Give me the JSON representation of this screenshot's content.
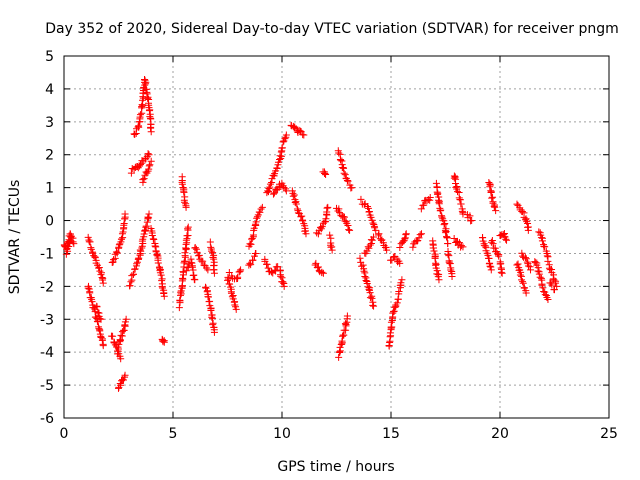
{
  "chart_data": {
    "type": "scatter",
    "title": "Day 352 of 2020, Sidereal Day-to-day VTEC variation (SDTVAR) for receiver pngm",
    "xlabel": "GPS time / hours",
    "ylabel": "SDTVAR / TECUs",
    "xlim": [
      0,
      25
    ],
    "ylim": [
      -6,
      5
    ],
    "xticks": [
      0,
      5,
      10,
      15,
      20,
      25
    ],
    "yticks": [
      -6,
      -5,
      -4,
      -3,
      -2,
      -1,
      0,
      1,
      2,
      3,
      4,
      5
    ],
    "x_tick_labels": [
      "0",
      "5",
      "10",
      "15",
      "20",
      "25"
    ],
    "y_tick_labels": [
      "-6",
      "-5",
      "-4",
      "-3",
      "-2",
      "-1",
      "0",
      "1",
      "2",
      "3",
      "4",
      "5"
    ],
    "grid": true,
    "marker": "+",
    "color": "#ff0000",
    "tracks": [
      [
        [
          0.1,
          -1.0
        ],
        [
          0.2,
          -0.6
        ],
        [
          0.3,
          -0.4
        ],
        [
          0.45,
          -0.7
        ]
      ],
      [
        [
          0.0,
          -0.7
        ],
        [
          0.15,
          -0.9
        ],
        [
          0.3,
          -0.5
        ]
      ],
      [
        [
          1.1,
          -0.5
        ],
        [
          1.3,
          -0.9
        ],
        [
          1.5,
          -1.3
        ],
        [
          1.7,
          -1.6
        ],
        [
          1.8,
          -1.9
        ]
      ],
      [
        [
          1.1,
          -2.0
        ],
        [
          1.3,
          -2.5
        ],
        [
          1.5,
          -3.0
        ],
        [
          1.7,
          -3.5
        ],
        [
          1.8,
          -3.8
        ]
      ],
      [
        [
          1.5,
          -2.6
        ],
        [
          1.7,
          -3.0
        ]
      ],
      [
        [
          2.2,
          -1.3
        ],
        [
          2.5,
          -0.9
        ],
        [
          2.7,
          -0.4
        ],
        [
          2.8,
          0.2
        ]
      ],
      [
        [
          2.2,
          -3.5
        ],
        [
          2.4,
          -3.9
        ],
        [
          2.6,
          -4.2
        ]
      ],
      [
        [
          2.45,
          -4.0
        ],
        [
          2.6,
          -3.6
        ],
        [
          2.75,
          -3.3
        ],
        [
          2.85,
          -3.0
        ]
      ],
      [
        [
          2.5,
          -5.1
        ],
        [
          2.65,
          -4.9
        ],
        [
          2.8,
          -4.7
        ]
      ],
      [
        [
          3.0,
          -2.0
        ],
        [
          3.2,
          -1.6
        ],
        [
          3.4,
          -1.2
        ],
        [
          3.5,
          -1.0
        ]
      ],
      [
        [
          3.1,
          1.5
        ],
        [
          3.3,
          1.6
        ],
        [
          3.5,
          1.7
        ],
        [
          3.7,
          1.9
        ],
        [
          3.9,
          2.0
        ]
      ],
      [
        [
          3.2,
          2.6
        ],
        [
          3.4,
          2.8
        ],
        [
          3.6,
          3.5
        ],
        [
          3.7,
          4.3
        ],
        [
          3.9,
          3.5
        ],
        [
          4.0,
          2.7
        ]
      ],
      [
        [
          3.5,
          -1.0
        ],
        [
          3.7,
          -0.3
        ],
        [
          3.9,
          0.2
        ]
      ],
      [
        [
          3.6,
          1.2
        ],
        [
          3.8,
          1.5
        ],
        [
          4.0,
          1.8
        ]
      ],
      [
        [
          4.0,
          -0.3
        ],
        [
          4.2,
          -0.8
        ],
        [
          4.4,
          -1.5
        ],
        [
          4.6,
          -2.3
        ]
      ],
      [
        [
          4.5,
          -3.6
        ],
        [
          4.6,
          -3.7
        ]
      ],
      [
        [
          5.3,
          -2.6
        ],
        [
          5.4,
          -2.0
        ],
        [
          5.5,
          -1.4
        ],
        [
          5.6,
          -0.8
        ],
        [
          5.7,
          -0.2
        ]
      ],
      [
        [
          5.4,
          1.3
        ],
        [
          5.5,
          0.8
        ],
        [
          5.6,
          0.4
        ]
      ],
      [
        [
          5.6,
          -1.5
        ],
        [
          5.8,
          -1.2
        ],
        [
          6.0,
          -1.8
        ]
      ],
      [
        [
          6.0,
          -0.8
        ],
        [
          6.3,
          -1.2
        ],
        [
          6.6,
          -1.5
        ]
      ],
      [
        [
          6.5,
          -2.0
        ],
        [
          6.7,
          -2.5
        ],
        [
          6.9,
          -3.4
        ]
      ],
      [
        [
          6.7,
          -0.7
        ],
        [
          6.85,
          -1.0
        ],
        [
          6.9,
          -1.6
        ]
      ],
      [
        [
          7.5,
          -1.7
        ],
        [
          7.7,
          -2.2
        ],
        [
          7.9,
          -2.7
        ]
      ],
      [
        [
          7.6,
          -1.6
        ],
        [
          7.9,
          -1.8
        ],
        [
          8.1,
          -1.5
        ]
      ],
      [
        [
          8.5,
          -0.8
        ],
        [
          8.7,
          -0.4
        ],
        [
          8.9,
          0.2
        ],
        [
          9.1,
          0.4
        ]
      ],
      [
        [
          8.5,
          -1.4
        ],
        [
          8.8,
          -1.0
        ]
      ],
      [
        [
          9.3,
          0.8
        ],
        [
          9.5,
          1.2
        ],
        [
          9.7,
          1.5
        ],
        [
          9.9,
          1.8
        ],
        [
          10.0,
          2.2
        ],
        [
          10.2,
          2.6
        ]
      ],
      [
        [
          9.2,
          -1.2
        ],
        [
          9.4,
          -1.5
        ],
        [
          9.6,
          -1.6
        ],
        [
          9.8,
          -1.4
        ]
      ],
      [
        [
          9.6,
          0.8
        ],
        [
          9.8,
          1.0
        ],
        [
          10.0,
          1.1
        ],
        [
          10.2,
          0.9
        ]
      ],
      [
        [
          9.9,
          -1.5
        ],
        [
          10.0,
          -1.8
        ],
        [
          10.1,
          -2.0
        ]
      ],
      [
        [
          10.4,
          2.9
        ],
        [
          10.6,
          2.8
        ],
        [
          10.8,
          2.7
        ],
        [
          11.0,
          2.6
        ]
      ],
      [
        [
          10.5,
          0.9
        ],
        [
          10.6,
          0.6
        ],
        [
          10.8,
          0.2
        ],
        [
          11.0,
          -0.1
        ],
        [
          11.1,
          -0.4
        ]
      ],
      [
        [
          11.6,
          -0.4
        ],
        [
          11.8,
          -0.2
        ],
        [
          12.0,
          0.0
        ],
        [
          12.1,
          0.4
        ]
      ],
      [
        [
          11.5,
          -1.3
        ],
        [
          11.7,
          -1.5
        ],
        [
          11.9,
          -1.6
        ]
      ],
      [
        [
          11.9,
          1.5
        ],
        [
          12.0,
          1.4
        ]
      ],
      [
        [
          12.2,
          -0.5
        ],
        [
          12.3,
          -0.9
        ]
      ],
      [
        [
          12.6,
          2.1
        ],
        [
          12.8,
          1.6
        ],
        [
          13.0,
          1.2
        ],
        [
          13.2,
          1.0
        ]
      ],
      [
        [
          12.5,
          0.4
        ],
        [
          12.7,
          0.2
        ],
        [
          12.9,
          0.0
        ],
        [
          13.1,
          -0.3
        ]
      ],
      [
        [
          12.6,
          -4.1
        ],
        [
          12.7,
          -3.8
        ],
        [
          12.9,
          -3.3
        ],
        [
          13.0,
          -2.9
        ]
      ],
      [
        [
          13.6,
          -1.2
        ],
        [
          13.8,
          -1.6
        ],
        [
          14.0,
          -2.1
        ],
        [
          14.2,
          -2.6
        ]
      ],
      [
        [
          13.6,
          0.6
        ],
        [
          13.9,
          0.4
        ],
        [
          14.1,
          0.1
        ],
        [
          14.3,
          -0.3
        ]
      ],
      [
        [
          13.8,
          -1.0
        ],
        [
          14.0,
          -0.8
        ],
        [
          14.2,
          -0.5
        ]
      ],
      [
        [
          14.4,
          -0.4
        ],
        [
          14.6,
          -0.6
        ],
        [
          14.8,
          -0.9
        ]
      ],
      [
        [
          14.9,
          -3.8
        ],
        [
          15.0,
          -3.3
        ],
        [
          15.1,
          -2.8
        ],
        [
          15.3,
          -2.4
        ],
        [
          15.5,
          -1.8
        ]
      ],
      [
        [
          15.0,
          -1.2
        ],
        [
          15.2,
          -1.1
        ],
        [
          15.4,
          -1.3
        ]
      ],
      [
        [
          15.4,
          -0.8
        ],
        [
          15.6,
          -0.6
        ],
        [
          15.7,
          -0.4
        ]
      ],
      [
        [
          16.0,
          -0.8
        ],
        [
          16.2,
          -0.6
        ],
        [
          16.4,
          -0.4
        ]
      ],
      [
        [
          16.4,
          0.4
        ],
        [
          16.6,
          0.6
        ],
        [
          16.8,
          0.7
        ]
      ],
      [
        [
          16.9,
          -0.6
        ],
        [
          17.0,
          -1.0
        ],
        [
          17.1,
          -1.5
        ],
        [
          17.2,
          -1.8
        ]
      ],
      [
        [
          17.1,
          1.1
        ],
        [
          17.2,
          0.6
        ],
        [
          17.3,
          0.2
        ],
        [
          17.5,
          -0.2
        ],
        [
          17.6,
          -0.7
        ]
      ],
      [
        [
          17.6,
          -1.0
        ],
        [
          17.7,
          -1.3
        ],
        [
          17.8,
          -1.7
        ]
      ],
      [
        [
          17.9,
          1.4
        ],
        [
          18.0,
          1.0
        ],
        [
          18.2,
          0.6
        ],
        [
          18.3,
          0.2
        ]
      ],
      [
        [
          17.9,
          -0.6
        ],
        [
          18.1,
          -0.7
        ],
        [
          18.3,
          -0.8
        ]
      ],
      [
        [
          18.5,
          0.2
        ],
        [
          18.7,
          0.0
        ]
      ],
      [
        [
          19.2,
          -0.5
        ],
        [
          19.4,
          -1.0
        ],
        [
          19.6,
          -1.5
        ]
      ],
      [
        [
          19.5,
          1.2
        ],
        [
          19.6,
          0.8
        ],
        [
          19.8,
          0.3
        ]
      ],
      [
        [
          19.6,
          -0.6
        ],
        [
          19.8,
          -0.9
        ],
        [
          20.0,
          -1.2
        ],
        [
          20.1,
          -1.6
        ]
      ],
      [
        [
          20.0,
          -0.5
        ],
        [
          20.2,
          -0.4
        ],
        [
          20.3,
          -0.6
        ]
      ],
      [
        [
          20.8,
          0.5
        ],
        [
          21.0,
          0.3
        ],
        [
          21.2,
          0.0
        ],
        [
          21.3,
          -0.3
        ]
      ],
      [
        [
          20.8,
          -1.3
        ],
        [
          21.0,
          -1.8
        ],
        [
          21.2,
          -2.2
        ]
      ],
      [
        [
          21.0,
          -1.0
        ],
        [
          21.2,
          -1.2
        ],
        [
          21.4,
          -1.5
        ]
      ],
      [
        [
          21.6,
          -1.2
        ],
        [
          21.8,
          -1.6
        ],
        [
          22.0,
          -2.1
        ],
        [
          22.2,
          -2.4
        ]
      ],
      [
        [
          21.8,
          -0.3
        ],
        [
          22.0,
          -0.7
        ],
        [
          22.2,
          -1.1
        ]
      ],
      [
        [
          22.2,
          -1.3
        ],
        [
          22.4,
          -1.6
        ],
        [
          22.6,
          -2.0
        ]
      ],
      [
        [
          22.3,
          -1.9
        ],
        [
          22.5,
          -2.1
        ]
      ]
    ]
  }
}
